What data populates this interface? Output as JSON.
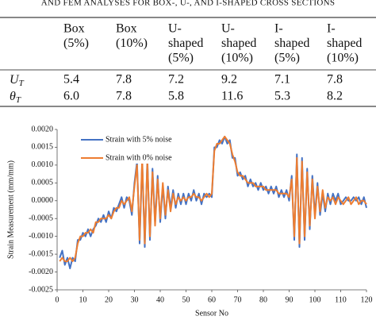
{
  "caption": "AND FEM ANALYSES FOR BOX-, U-, AND I-SHAPED CROSS SECTIONS",
  "table": {
    "headers": [
      [
        "Box",
        "(5%)"
      ],
      [
        "Box",
        "(10%)"
      ],
      [
        "U-",
        "shaped",
        "(5%)"
      ],
      [
        "U-",
        "shaped",
        "(10%)"
      ],
      [
        "I-",
        "shaped",
        "(5%)"
      ],
      [
        "I-",
        "shaped",
        "(10%)"
      ]
    ],
    "rows": [
      {
        "label": {
          "symbol": "U",
          "subscript": "T"
        },
        "cells": [
          "5.4",
          "7.8",
          "7.2",
          "9.2",
          "7.1",
          "7.8"
        ]
      },
      {
        "label": {
          "symbol": "θ",
          "subscript": "T"
        },
        "cells": [
          "6.0",
          "7.8",
          "5.8",
          "11.6",
          "5.3",
          "8.2"
        ]
      }
    ]
  },
  "chart_data": {
    "type": "line",
    "xlabel": "Sensor No",
    "ylabel": "Strain Measurement (mm/mm)",
    "xlim": [
      0,
      120
    ],
    "ylim": [
      -0.0025,
      0.002
    ],
    "xticks": [
      0,
      10,
      20,
      30,
      40,
      50,
      60,
      70,
      80,
      90,
      100,
      110,
      120
    ],
    "yticks": [
      {
        "value": 0.002,
        "label": "0.0020"
      },
      {
        "value": 0.0015,
        "label": "0.0015"
      },
      {
        "value": 0.001,
        "label": "0.0010"
      },
      {
        "value": 0.0005,
        "label": "0.0005"
      },
      {
        "value": 0,
        "label": "0.0000"
      },
      {
        "value": -0.0005,
        "label": "-0.0005"
      },
      {
        "value": -0.001,
        "label": "-0.0010"
      },
      {
        "value": -0.0015,
        "label": "-0.0015"
      },
      {
        "value": -0.002,
        "label": "-0.0020"
      },
      {
        "value": -0.0025,
        "label": "-0.0025"
      }
    ],
    "grid": false,
    "legend": "upper left",
    "x": [
      1,
      2,
      3,
      4,
      5,
      6,
      7,
      8,
      9,
      10,
      11,
      12,
      13,
      14,
      15,
      16,
      17,
      18,
      19,
      20,
      21,
      22,
      23,
      24,
      25,
      26,
      27,
      28,
      29,
      30,
      31,
      32,
      33,
      34,
      35,
      36,
      37,
      38,
      39,
      40,
      41,
      42,
      43,
      44,
      45,
      46,
      47,
      48,
      49,
      50,
      51,
      52,
      53,
      54,
      55,
      56,
      57,
      58,
      59,
      60,
      61,
      62,
      63,
      64,
      65,
      66,
      67,
      68,
      69,
      70,
      71,
      72,
      73,
      74,
      75,
      76,
      77,
      78,
      79,
      80,
      81,
      82,
      83,
      84,
      85,
      86,
      87,
      88,
      89,
      90,
      91,
      92,
      93,
      94,
      95,
      96,
      97,
      98,
      99,
      100,
      101,
      102,
      103,
      104,
      105,
      106,
      107,
      108,
      109,
      110,
      111,
      112,
      113,
      114,
      115,
      116,
      117,
      118,
      119,
      120
    ],
    "series": [
      {
        "name": "Strain with 5% noise",
        "color": "#4472c4",
        "values": [
          -0.0016,
          -0.0014,
          -0.0018,
          -0.0016,
          -0.0019,
          -0.0016,
          -0.0017,
          -0.0011,
          -0.0011,
          -0.0009,
          -0.001,
          -0.0008,
          -0.001,
          -0.0008,
          -0.0007,
          -0.0005,
          -0.0006,
          -0.0004,
          -0.0006,
          -0.0003,
          -0.0005,
          -0.0002,
          -0.0003,
          -0.0001,
          0.0001,
          -0.0002,
          0.0001,
          0,
          -0.0004,
          0.0005,
          0.0011,
          -0.0012,
          0.0011,
          -0.0013,
          0.0012,
          -0.0011,
          0.0009,
          -0.0006,
          0.0007,
          -0.0006,
          0.0004,
          -0.0005,
          0.0004,
          -0.0002,
          0.0003,
          -0.0002,
          0.0002,
          -0.0001,
          0.0002,
          -0.0001,
          0.0002,
          0,
          0.0003,
          0,
          0.0002,
          -0.0001,
          0.0002,
          0.0001,
          0.0002,
          0.0001,
          0.0015,
          0.0015,
          0.0017,
          0.0016,
          0.0018,
          0.0016,
          0.0017,
          0.0012,
          0.0012,
          0.0007,
          0.0008,
          0.0006,
          0.0007,
          0.0004,
          0.0006,
          0.0004,
          0.0005,
          0.0003,
          0.0005,
          0.0003,
          0.0004,
          0.0002,
          0.0004,
          0.0002,
          0.0004,
          0.0001,
          0.0003,
          0.0001,
          0.0003,
          0,
          0.0007,
          -0.0011,
          0.0013,
          -0.0013,
          0.0012,
          -0.0011,
          0.0009,
          -0.0008,
          0.0007,
          -0.0004,
          0.0005,
          -0.0004,
          0.0002,
          -0.0003,
          0.0002,
          -0.0001,
          0.0002,
          0,
          0.0002,
          -0.0001,
          0,
          0.0001,
          0,
          0,
          0.0001,
          0,
          0.0001,
          -0.0001,
          0.0001,
          -0.0002
        ]
      },
      {
        "name": "Strain with 0% noise",
        "color": "#ed7d31",
        "values": [
          -0.0017,
          -0.0016,
          -0.0017,
          -0.0017,
          -0.0016,
          -0.0017,
          -0.0016,
          -0.0012,
          -0.001,
          -0.001,
          -0.0009,
          -0.0009,
          -0.0008,
          -0.0009,
          -0.0006,
          -0.0006,
          -0.0005,
          -0.0005,
          -0.0005,
          -0.0004,
          -0.0005,
          -0.0003,
          -0.0002,
          -0.0002,
          0,
          -0.0001,
          0,
          0.0001,
          -0.0003,
          0.0004,
          0.001,
          -0.0011,
          0.0012,
          -0.0012,
          0.0011,
          -0.001,
          0.0008,
          -0.0007,
          0.0006,
          -0.0005,
          0.0005,
          -0.0004,
          0.0003,
          -0.0003,
          0.0002,
          -0.0001,
          0.0001,
          0,
          0.0001,
          0,
          0.0001,
          0.0001,
          0.0002,
          0.0001,
          0.0001,
          0,
          0.0001,
          0.0002,
          0.0001,
          0.0002,
          0.0014,
          0.0016,
          0.0016,
          0.0017,
          0.0018,
          0.0017,
          0.0016,
          0.0013,
          0.0011,
          0.0008,
          0.0007,
          0.0007,
          0.0006,
          0.0005,
          0.0005,
          0.0005,
          0.0004,
          0.0004,
          0.0004,
          0.0004,
          0.0003,
          0.0003,
          0.0003,
          0.0003,
          0.0003,
          0.0002,
          0.0002,
          0.0002,
          0.0002,
          0.0001,
          0.0006,
          -0.001,
          0.0012,
          -0.0012,
          0.0011,
          -0.001,
          0.0008,
          -0.0007,
          0.0006,
          -0.0005,
          0.0004,
          -0.0003,
          0.0003,
          -0.0002,
          0.0001,
          0,
          0.0001,
          -0.0001,
          0.0001,
          0,
          -0.0001,
          0,
          0.0001,
          -0.0001,
          0,
          0.0001,
          -0.0001,
          0,
          0,
          -0.0001
        ]
      }
    ]
  }
}
